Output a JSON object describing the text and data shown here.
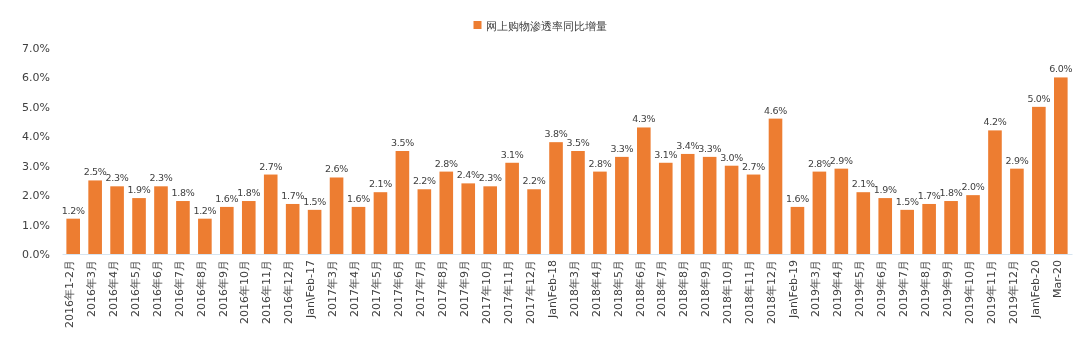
{
  "chart_data": {
    "type": "bar",
    "categories": [
      "2016年1-2月",
      "2016年3月",
      "2016年4月",
      "2016年5月",
      "2016年6月",
      "2016年7月",
      "2016年8月",
      "2016年9月",
      "2016年10月",
      "2016年11月",
      "2016年12月",
      "Jan\\Feb-17",
      "2017年3月",
      "2017年4月",
      "2017年5月",
      "2017年6月",
      "2017年7月",
      "2017年8月",
      "2017年9月",
      "2017年10月",
      "2017年11月",
      "2017年12月",
      "Jan\\Feb-18",
      "2018年3月",
      "2018年4月",
      "2018年5月",
      "2018年6月",
      "2018年7月",
      "2018年8月",
      "2018年9月",
      "2018年10月",
      "2018年11月",
      "2018年12月",
      "Jan\\Feb-19",
      "2019年3月",
      "2019年4月",
      "2019年5月",
      "2019年6月",
      "2019年7月",
      "2019年8月",
      "2019年9月",
      "2019年10月",
      "2019年11月",
      "2019年12月",
      "Jan\\Feb-20",
      "Mar-20"
    ],
    "series": [
      {
        "name": "网上购物渗透率同比增量",
        "color": "#ed7d31",
        "values": [
          1.2,
          2.5,
          2.3,
          1.9,
          2.3,
          1.8,
          1.2,
          1.6,
          1.8,
          2.7,
          1.7,
          1.5,
          2.6,
          1.6,
          2.1,
          3.5,
          2.2,
          2.8,
          2.4,
          2.3,
          3.1,
          2.2,
          3.8,
          3.5,
          2.8,
          3.3,
          4.3,
          3.1,
          3.4,
          3.3,
          3.0,
          2.7,
          4.6,
          1.6,
          2.8,
          2.9,
          2.1,
          1.9,
          1.5,
          1.7,
          1.8,
          2.0,
          4.2,
          2.9,
          5.0,
          6.0
        ],
        "value_labels": [
          "1.2%",
          "2.5%",
          "2.3%",
          "1.9%",
          "2.3%",
          "1.8%",
          "1.2%",
          "1.6%",
          "1.8%",
          "2.7%",
          "1.7%",
          "1.5%",
          "2.6%",
          "1.6%",
          "2.1%",
          "3.5%",
          "2.2%",
          "2.8%",
          "2.4%",
          "2.3%",
          "3.1%",
          "2.2%",
          "3.8%",
          "3.5%",
          "2.8%",
          "3.3%",
          "4.3%",
          "3.1%",
          "3.4%",
          "3.3%",
          "3.0%",
          "2.7%",
          "4.6%",
          "1.6%",
          "2.8%",
          "2.9%",
          "2.1%",
          "1.9%",
          "1.5%",
          "1.7%",
          "1.8%",
          "2.0%",
          "4.2%",
          "2.9%",
          "5.0%",
          "6.0%"
        ]
      }
    ],
    "ylim": [
      0,
      7
    ],
    "yticks": [
      {
        "value": 0,
        "label": "0.0%"
      },
      {
        "value": 1,
        "label": "1.0%"
      },
      {
        "value": 2,
        "label": "2.0%"
      },
      {
        "value": 3,
        "label": "3.0%"
      },
      {
        "value": 4,
        "label": "4.0%"
      },
      {
        "value": 5,
        "label": "5.0%"
      },
      {
        "value": 6,
        "label": "6.0%"
      },
      {
        "value": 7,
        "label": "7.0%"
      }
    ],
    "legend": "top"
  }
}
